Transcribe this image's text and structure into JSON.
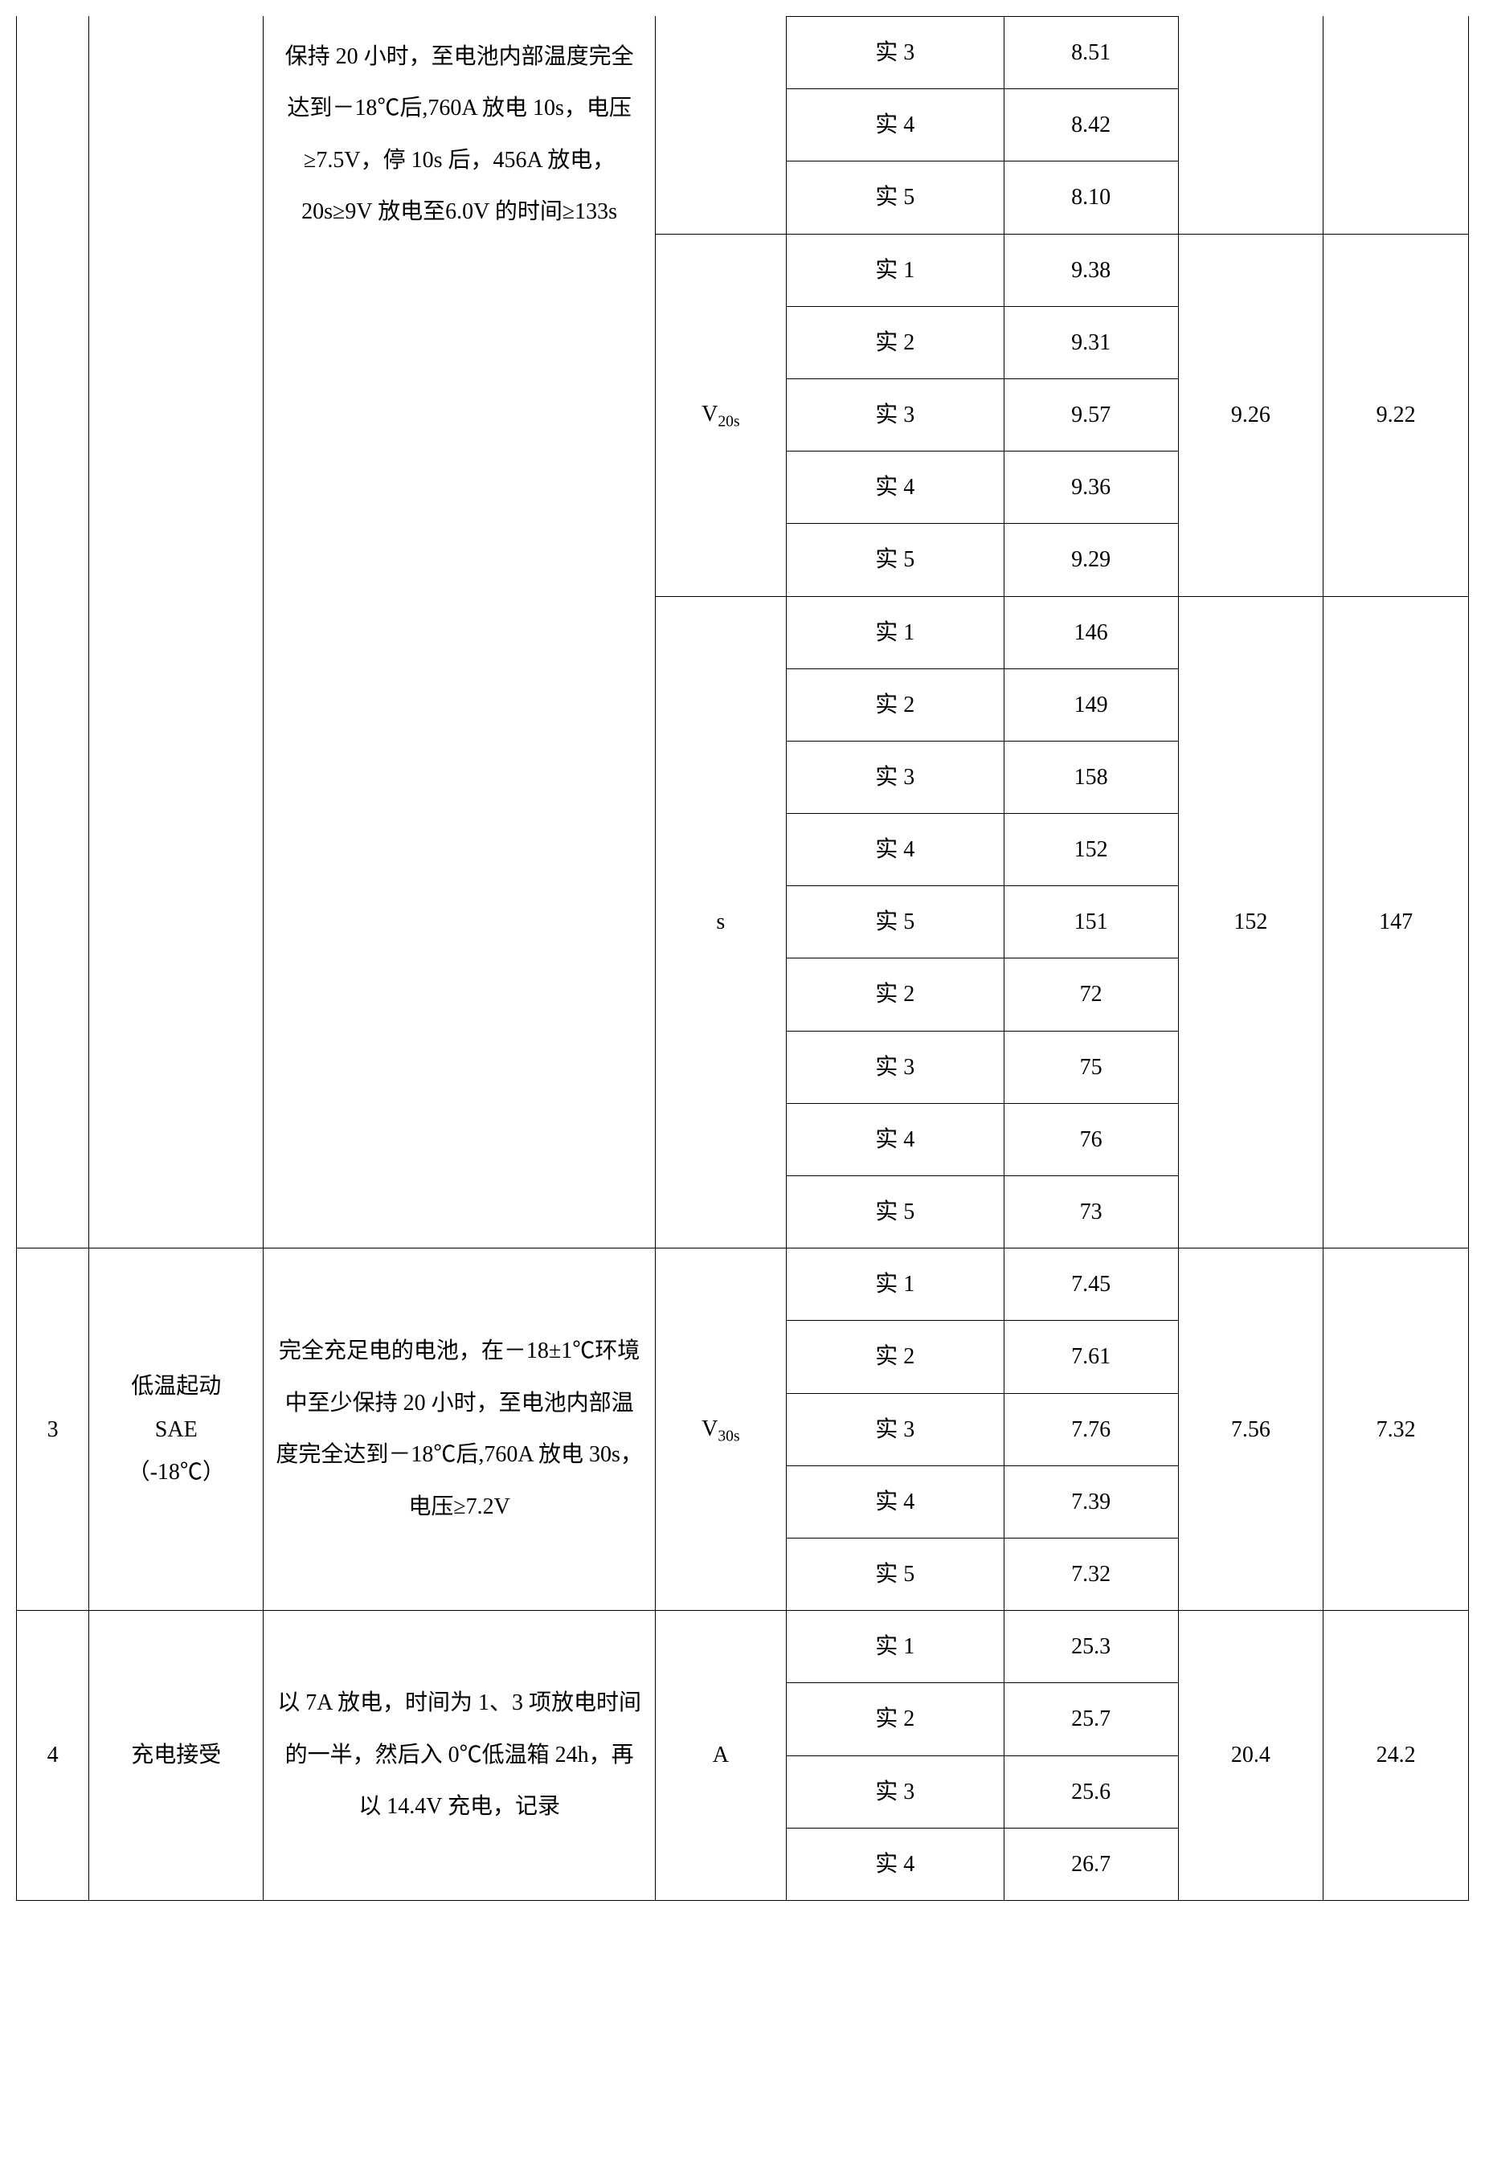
{
  "table": {
    "block1": {
      "desc": "保持 20 小时，至电池内部温度完全达到－18℃后,760A 放电 10s，电压≥7.5V，停 10s 后，456A 放电，20s≥9V 放电至6.0V 的时间≥133s",
      "group_a": {
        "rows": [
          {
            "label": "实 3",
            "value": "8.51"
          },
          {
            "label": "实 4",
            "value": "8.42"
          },
          {
            "label": "实 5",
            "value": "8.10"
          }
        ]
      },
      "group_b": {
        "unit_html": "V<span class=\"sub\">20s</span>",
        "rows": [
          {
            "label": "实 1",
            "value": "9.38"
          },
          {
            "label": "实 2",
            "value": "9.31"
          },
          {
            "label": "实 3",
            "value": "9.57"
          },
          {
            "label": "实 4",
            "value": "9.36"
          },
          {
            "label": "实 5",
            "value": "9.29"
          }
        ],
        "avg1": "9.26",
        "avg2": "9.22"
      },
      "group_c": {
        "unit": "s",
        "rows": [
          {
            "label": "实 1",
            "value": "146"
          },
          {
            "label": "实 2",
            "value": "149"
          },
          {
            "label": "实 3",
            "value": "158"
          },
          {
            "label": "实 4",
            "value": "152"
          },
          {
            "label": "实 5",
            "value": "151"
          },
          {
            "label": "实 2",
            "value": "72"
          },
          {
            "label": "实 3",
            "value": "75"
          },
          {
            "label": "实 4",
            "value": "76"
          },
          {
            "label": "实 5",
            "value": "73"
          }
        ],
        "avg1": "152",
        "avg2": "147"
      }
    },
    "block2": {
      "num": "3",
      "title": "低温起动\nSAE\n（-18℃）",
      "desc": "完全充足电的电池，在－18±1℃环境中至少保持 20 小时，至电池内部温度完全达到－18℃后,760A 放电 30s，电压≥7.2V",
      "unit_html": "V<span class=\"sub\">30s</span>",
      "rows": [
        {
          "label": "实 1",
          "value": "7.45"
        },
        {
          "label": "实 2",
          "value": "7.61"
        },
        {
          "label": "实 3",
          "value": "7.76"
        },
        {
          "label": "实 4",
          "value": "7.39"
        },
        {
          "label": "实 5",
          "value": "7.32"
        }
      ],
      "avg1": "7.56",
      "avg2": "7.32"
    },
    "block3": {
      "num": "4",
      "title": "充电接受",
      "desc": "以 7A 放电，时间为 1、3 项放电时间的一半，然后入 0℃低温箱 24h，再以 14.4V 充电，记录",
      "unit": "A",
      "rows": [
        {
          "label": "实 1",
          "value": "25.3"
        },
        {
          "label": "实 2",
          "value": "25.7"
        },
        {
          "label": "实 3",
          "value": "25.6"
        },
        {
          "label": "实 4",
          "value": "26.7"
        }
      ],
      "avg1": "20.4",
      "avg2": "24.2"
    }
  }
}
